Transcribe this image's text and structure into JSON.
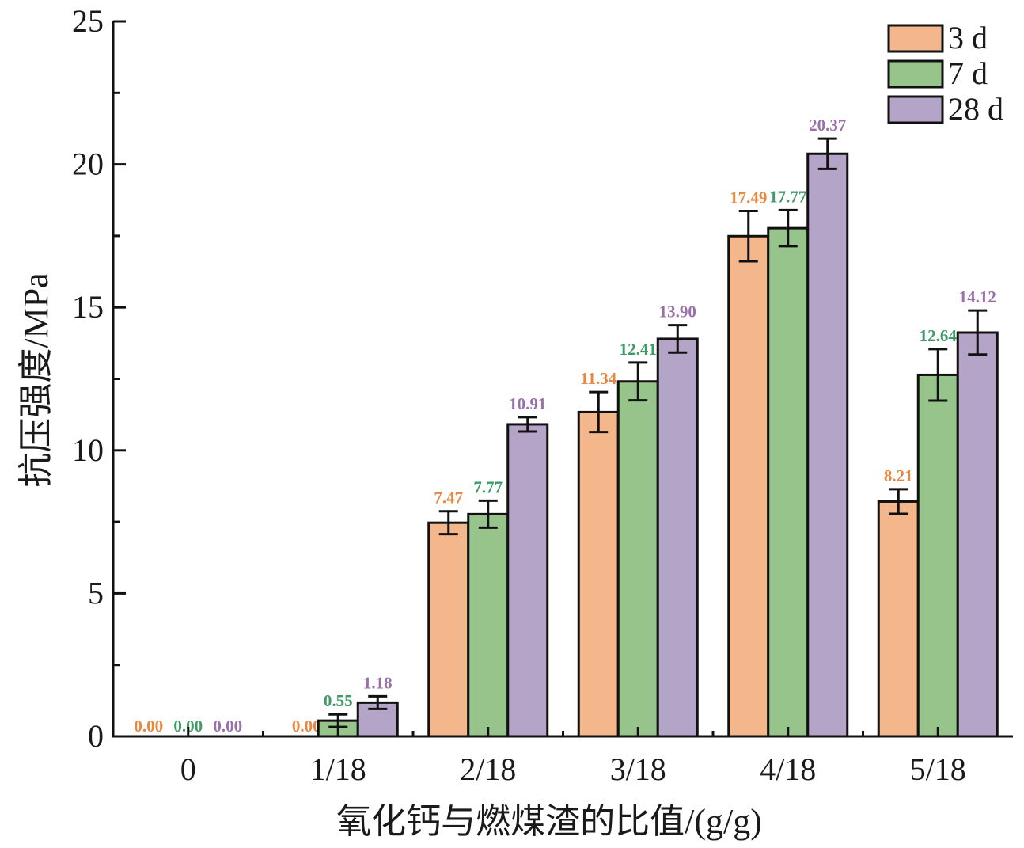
{
  "chart_data": {
    "type": "bar",
    "title": "",
    "xlabel": "氧化钙与燃煤渣的比值/(g/g)",
    "ylabel": "抗压强度/MPa",
    "ylim": [
      0,
      25
    ],
    "yticks": [
      0,
      5,
      10,
      15,
      20,
      25
    ],
    "yticks_labels": [
      "0",
      "5",
      "10",
      "15",
      "20",
      "25"
    ],
    "categories": [
      "0",
      "1/18",
      "2/18",
      "3/18",
      "4/18",
      "5/18"
    ],
    "legend_position": "top-right",
    "grid": false,
    "series": [
      {
        "name": "3 d",
        "color": "#f4b78c",
        "label_color": "#e8873e",
        "values": [
          0.0,
          0.0,
          7.47,
          11.34,
          17.49,
          8.21
        ],
        "errors": [
          0,
          0,
          0.4,
          0.7,
          0.88,
          0.43
        ],
        "labels": [
          "0.00",
          "0.00",
          "7.47",
          "11.34",
          "17.49",
          "8.21"
        ]
      },
      {
        "name": "7 d",
        "color": "#97c48a",
        "label_color": "#3f9a68",
        "values": [
          0.0,
          0.55,
          7.77,
          12.41,
          17.77,
          12.64
        ],
        "errors": [
          0,
          0.22,
          0.47,
          0.66,
          0.63,
          0.9
        ],
        "labels": [
          "0.00",
          "0.55",
          "7.77",
          "12.41",
          "17.77",
          "12.64"
        ]
      },
      {
        "name": "28 d",
        "color": "#b4a4c8",
        "label_color": "#9a70aa",
        "values": [
          0.0,
          1.18,
          10.91,
          13.9,
          20.37,
          14.12
        ],
        "errors": [
          0,
          0.22,
          0.25,
          0.48,
          0.53,
          0.77
        ],
        "labels": [
          "0.00",
          "1.18",
          "10.91",
          "13.90",
          "20.37",
          "14.12"
        ]
      }
    ]
  }
}
